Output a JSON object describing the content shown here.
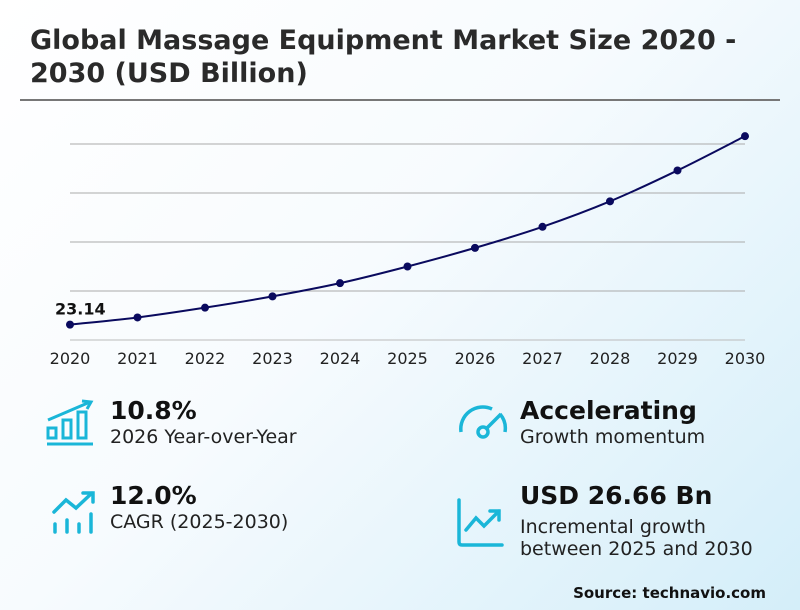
{
  "title": "Global Massage Equipment Market Size 2020 - 2030 (USD Billion)",
  "chart_data": {
    "type": "line",
    "title": "Global Massage Equipment Market Size 2020 - 2030 (USD Billion)",
    "categories": [
      "2020",
      "2021",
      "2022",
      "2023",
      "2024",
      "2025",
      "2026",
      "2027",
      "2028",
      "2029",
      "2030"
    ],
    "values": [
      23.14,
      24.6,
      26.6,
      28.9,
      31.6,
      35.0,
      38.8,
      43.1,
      48.3,
      54.6,
      61.6
    ],
    "data_labels": {
      "2020": "23.14"
    },
    "ylim": [
      20,
      60
    ],
    "grid": true,
    "y_tick_labels_shown": false,
    "color": "#0a0a5e"
  },
  "stats": [
    {
      "value": "10.8%",
      "label": "2026 Year-over-Year",
      "icon": "bar-chart-growth-icon"
    },
    {
      "value": "Accelerating",
      "label": "Growth momentum",
      "icon": "speedometer-icon"
    },
    {
      "value": "12.0%",
      "label": "CAGR (2025-2030)",
      "icon": "trend-up-bars-icon"
    },
    {
      "value": "USD 26.66 Bn",
      "label": "Incremental growth between 2025 and 2030",
      "icon": "line-chart-up-icon"
    }
  ],
  "accent_color": "#1ab6d8",
  "source": "Source: technavio.com"
}
